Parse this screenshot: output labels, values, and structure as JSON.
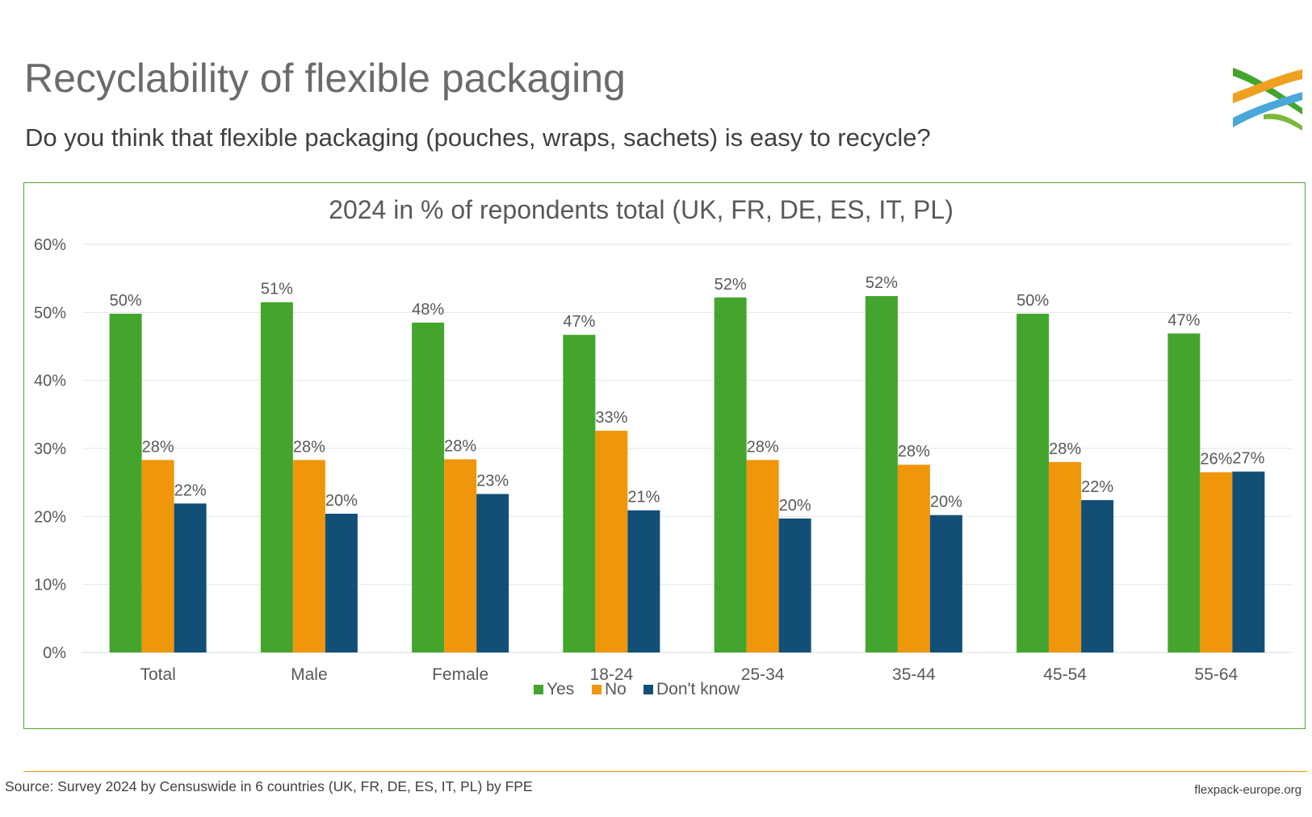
{
  "slide": {
    "title": "Recyclability of flexible packaging",
    "subtitle": "Do you think that flexible packaging (pouches, wraps, sachets) is easy to recycle?",
    "source": "Source: Survey 2024 by Censuswide in 6 countries (UK, FR, DE, ES, IT, PL) by FPE",
    "website": "flexpack-europe.org"
  },
  "colors": {
    "yes": "#43a52e",
    "no": "#f0960a",
    "dont_know": "#114f77",
    "frame": "#5aa02c",
    "grid": "#e6e6e6",
    "text": "#595959"
  },
  "chart_data": {
    "type": "bar",
    "title": "2024 in % of repondents total (UK, FR, DE, ES, IT, PL)",
    "xlabel": "",
    "ylabel": "",
    "ylim": [
      0,
      60
    ],
    "y_ticks": [
      0,
      10,
      20,
      30,
      40,
      50,
      60
    ],
    "y_tick_labels": [
      "0%",
      "10%",
      "20%",
      "30%",
      "40%",
      "50%",
      "60%"
    ],
    "categories": [
      "Total",
      "Male",
      "Female",
      "18-24",
      "25-34",
      "35-44",
      "45-54",
      "55-64"
    ],
    "series": [
      {
        "name": "Yes",
        "color_key": "yes",
        "values": [
          49.8,
          51.5,
          48.5,
          46.7,
          52.2,
          52.4,
          49.8,
          46.9
        ],
        "labels": [
          "50%",
          "51%",
          "48%",
          "47%",
          "52%",
          "52%",
          "50%",
          "47%"
        ]
      },
      {
        "name": "No",
        "color_key": "no",
        "values": [
          28.3,
          28.3,
          28.4,
          32.6,
          28.3,
          27.6,
          28.0,
          26.5
        ],
        "labels": [
          "28%",
          "28%",
          "28%",
          "33%",
          "28%",
          "28%",
          "28%",
          "26%"
        ]
      },
      {
        "name": "Don't know",
        "color_key": "dont_know",
        "values": [
          21.9,
          20.4,
          23.3,
          20.9,
          19.7,
          20.2,
          22.4,
          26.6
        ],
        "labels": [
          "22%",
          "20%",
          "23%",
          "21%",
          "20%",
          "20%",
          "22%",
          "27%"
        ]
      }
    ],
    "grid": true,
    "legend": "bottom-center"
  }
}
